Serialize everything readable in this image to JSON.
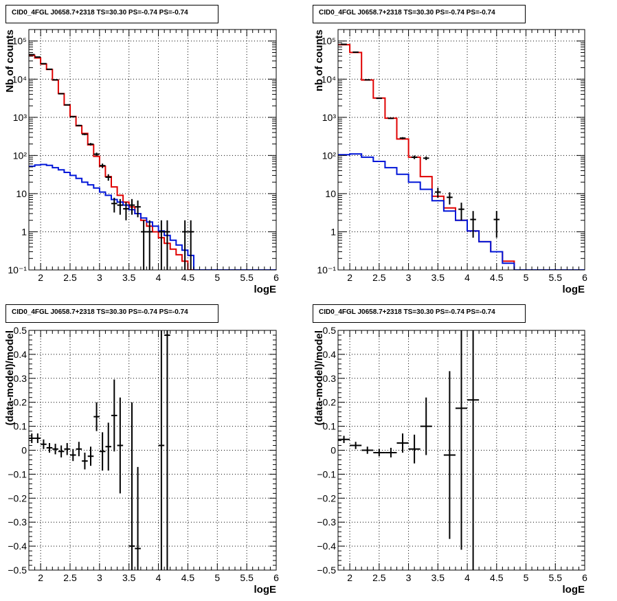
{
  "colors": {
    "data": "#000000",
    "total_model": "#e00000",
    "background_model": "#0016d8",
    "grid": "#000000"
  },
  "chart_data": [
    {
      "type": "histogram",
      "title": "CID0_4FGL J0658.7+2318 TS=30.30 PS=-0.74 PS=-0.74",
      "xlabel": "logE",
      "ylabel": "Nb of counts",
      "xlim": [
        1.8,
        6
      ],
      "ylim": [
        0.1,
        200000
      ],
      "yscale": "log",
      "grid": true,
      "xticks": [
        2,
        2.5,
        3,
        3.5,
        4,
        4.5,
        5,
        5.5,
        6
      ],
      "xtick_labels": [
        "2",
        "2.5",
        "3",
        "3.5",
        "4",
        "4.5",
        "5",
        "5.5",
        "6"
      ],
      "yticks": [
        0.1,
        1,
        10,
        100,
        1000,
        10000,
        100000
      ],
      "ytick_labels": [
        "10⁻¹",
        "1",
        "10",
        "10²",
        "10³",
        "10⁴",
        "10⁵"
      ],
      "bin_edges": [
        1.8,
        1.9,
        2.0,
        2.1,
        2.2,
        2.3,
        2.4,
        2.5,
        2.6,
        2.7,
        2.8,
        2.9,
        3.0,
        3.1,
        3.2,
        3.3,
        3.4,
        3.5,
        3.6,
        3.7,
        3.8,
        3.9,
        4.0,
        4.1,
        4.2,
        4.3,
        4.4,
        4.5,
        4.6,
        4.7,
        4.8,
        4.9,
        5.0,
        5.1,
        5.2,
        5.3,
        5.4,
        5.5,
        5.6,
        5.7,
        5.8,
        5.9,
        6.0
      ],
      "series": [
        {
          "role": "total_model",
          "style": "step",
          "values": [
            42000,
            36000,
            25000,
            18000,
            9500,
            4200,
            2100,
            1050,
            600,
            380,
            190,
            95,
            52,
            28,
            15,
            9,
            6,
            4.5,
            3.0,
            2.0,
            1.4,
            1.0,
            0.7,
            0.5,
            0.35,
            0.25,
            0.17,
            0.1,
            0.1,
            0.1,
            0.1,
            0.1,
            0.1,
            0.1,
            0.1,
            0.1,
            0.1,
            0.1,
            0.1,
            0.1,
            0.1,
            0.1
          ]
        },
        {
          "role": "background_model",
          "style": "step",
          "values": [
            52,
            56,
            58,
            55,
            48,
            42,
            36,
            30,
            25,
            20,
            17,
            14,
            11,
            9,
            7,
            6,
            5,
            3.8,
            3.0,
            2.3,
            1.8,
            1.4,
            1.05,
            0.8,
            0.6,
            0.45,
            0.33,
            0.24,
            0.1,
            0.1,
            0.1,
            0.1,
            0.1,
            0.1,
            0.1,
            0.1,
            0.1,
            0.1,
            0.1,
            0.1,
            0.1,
            0.1
          ]
        },
        {
          "role": "data",
          "style": "errorbar",
          "x": [
            1.85,
            1.95,
            2.05,
            2.15,
            2.25,
            2.35,
            2.45,
            2.55,
            2.65,
            2.75,
            2.85,
            2.95,
            3.05,
            3.15,
            3.25,
            3.35,
            3.45,
            3.55,
            3.65,
            3.75,
            3.85,
            4.05,
            4.15,
            4.45,
            4.55
          ],
          "y": [
            44000,
            38000,
            25500,
            18200,
            9600,
            4150,
            2120,
            1040,
            610,
            360,
            198,
            108,
            54,
            27,
            5.5,
            5,
            4,
            5,
            4.5,
            1,
            1,
            1,
            1,
            1,
            1
          ],
          "yerr_lo": [
            210,
            195,
            160,
            135,
            98,
            64,
            46,
            32,
            25,
            19,
            14,
            10.4,
            7.3,
            5.2,
            2.3,
            2.2,
            2.0,
            2.2,
            2.1,
            0.9,
            0.9,
            0.9,
            0.9,
            0.9,
            0.9
          ],
          "yerr_hi": [
            210,
            195,
            160,
            135,
            98,
            64,
            46,
            32,
            25,
            19,
            14,
            10.4,
            7.3,
            5.2,
            2.3,
            2.2,
            2.0,
            2.2,
            2.1,
            1.0,
            1.0,
            1.0,
            1.0,
            1.0,
            1.0
          ]
        }
      ]
    },
    {
      "type": "histogram",
      "title": "CID0_4FGL J0658.7+2318 TS=30.30 PS=-0.74 PS=-0.74",
      "xlabel": "logE",
      "ylabel": "nb of counts",
      "xlim": [
        1.8,
        6
      ],
      "ylim": [
        0.1,
        200000
      ],
      "yscale": "log",
      "grid": true,
      "xticks": [
        2,
        2.5,
        3,
        3.5,
        4,
        4.5,
        5,
        5.5,
        6
      ],
      "xtick_labels": [
        "2",
        "2.5",
        "3",
        "3.5",
        "4",
        "4.5",
        "5",
        "5.5",
        "6"
      ],
      "yticks": [
        0.1,
        1,
        10,
        100,
        1000,
        10000,
        100000
      ],
      "ytick_labels": [
        "10⁻¹",
        "1",
        "10",
        "10²",
        "10³",
        "10⁴",
        "10⁵"
      ],
      "bin_edges": [
        1.8,
        2.0,
        2.2,
        2.4,
        2.6,
        2.8,
        3.0,
        3.2,
        3.4,
        3.6,
        3.8,
        4.0,
        4.2,
        4.4,
        4.6,
        4.8,
        5.0,
        5.2,
        5.4,
        5.6,
        5.8,
        6.0
      ],
      "series": [
        {
          "role": "total_model",
          "style": "step",
          "values": [
            80000,
            50000,
            9500,
            3200,
            950,
            270,
            90,
            28,
            8.5,
            4.2,
            2.0,
            1.05,
            0.55,
            0.3,
            0.17,
            0.1,
            0.1,
            0.1,
            0.1,
            0.1,
            0.1
          ]
        },
        {
          "role": "background_model",
          "style": "step",
          "values": [
            105,
            110,
            90,
            70,
            48,
            32,
            20,
            13,
            6.5,
            3.5,
            2.0,
            1.05,
            0.55,
            0.3,
            0.15,
            0.1,
            0.1,
            0.1,
            0.1,
            0.1,
            0.1
          ]
        },
        {
          "role": "data",
          "style": "errorbar",
          "x": [
            1.9,
            2.1,
            2.3,
            2.5,
            2.7,
            2.9,
            3.1,
            3.3,
            3.5,
            3.7,
            3.9,
            4.1,
            4.5
          ],
          "y": [
            82000,
            51000,
            9600,
            3150,
            940,
            285,
            90,
            85,
            11,
            8,
            3.9,
            2.1,
            2.1
          ],
          "yerr_lo": [
            286,
            226,
            98,
            56,
            31,
            17,
            9.5,
            9.2,
            3.3,
            2.8,
            1.9,
            1.4,
            1.4
          ],
          "yerr_hi": [
            286,
            226,
            98,
            56,
            31,
            17,
            9.5,
            9.2,
            3.3,
            2.8,
            1.9,
            1.4,
            1.4
          ]
        }
      ]
    },
    {
      "type": "scatter",
      "title": "CID0_4FGL J0658.7+2318 TS=30.30 PS=-0.74 PS=-0.74",
      "xlabel": "logE",
      "ylabel": "(data-model)/model",
      "xlim": [
        1.8,
        6
      ],
      "ylim": [
        -0.5,
        0.5
      ],
      "grid": true,
      "xticks": [
        2,
        2.5,
        3,
        3.5,
        4,
        4.5,
        5,
        5.5,
        6
      ],
      "xtick_labels": [
        "2",
        "2.5",
        "3",
        "3.5",
        "4",
        "4.5",
        "5",
        "5.5",
        "6"
      ],
      "yticks": [
        -0.5,
        -0.4,
        -0.3,
        -0.2,
        -0.1,
        0,
        0.1,
        0.2,
        0.3,
        0.4,
        0.5
      ],
      "ytick_labels": [
        "−0.5",
        "−0.4",
        "−0.3",
        "−0.2",
        "−0.1",
        "0",
        "0.1",
        "0.2",
        "0.3",
        "0.4",
        "0.5"
      ],
      "series": [
        {
          "role": "data",
          "style": "errorbar",
          "xerr": 0.05,
          "x": [
            1.85,
            1.95,
            2.05,
            2.15,
            2.25,
            2.35,
            2.45,
            2.55,
            2.65,
            2.75,
            2.85,
            2.95,
            3.05,
            3.15,
            3.25,
            3.35,
            3.55,
            3.65,
            4.05,
            4.15
          ],
          "y": [
            0.05,
            0.05,
            0.025,
            0.01,
            0.005,
            -0.005,
            0.005,
            -0.02,
            0.005,
            -0.045,
            -0.025,
            0.14,
            -0.005,
            0.015,
            0.145,
            0.02,
            -0.4,
            -0.41,
            0.02,
            0.48
          ],
          "yerr": [
            0.02,
            0.02,
            0.02,
            0.02,
            0.022,
            0.025,
            0.025,
            0.025,
            0.03,
            0.035,
            0.04,
            0.06,
            0.08,
            0.1,
            0.15,
            0.2,
            0.6,
            0.34,
            1.0,
            1.0
          ]
        }
      ]
    },
    {
      "type": "scatter",
      "title": "CID0_4FGL J0658.7+2318 TS=30.30 PS=-0.74 PS=-0.74",
      "xlabel": "logE",
      "ylabel": "(data-model)/model",
      "xlim": [
        1.8,
        6
      ],
      "ylim": [
        -0.5,
        0.5
      ],
      "grid": true,
      "xticks": [
        2,
        2.5,
        3,
        3.5,
        4,
        4.5,
        5,
        5.5,
        6
      ],
      "xtick_labels": [
        "2",
        "2.5",
        "3",
        "3.5",
        "4",
        "4.5",
        "5",
        "5.5",
        "6"
      ],
      "yticks": [
        -0.5,
        -0.4,
        -0.3,
        -0.2,
        -0.1,
        0,
        0.1,
        0.2,
        0.3,
        0.4,
        0.5
      ],
      "ytick_labels": [
        "−0.5",
        "−0.4",
        "−0.3",
        "−0.2",
        "−0.1",
        "0",
        "0.1",
        "0.2",
        "0.3",
        "0.4",
        "0.5"
      ],
      "series": [
        {
          "role": "data",
          "style": "errorbar",
          "xerr": 0.1,
          "x": [
            1.9,
            2.1,
            2.3,
            2.5,
            2.7,
            2.9,
            3.1,
            3.3,
            3.7,
            3.9,
            4.1
          ],
          "y": [
            0.045,
            0.02,
            0.0,
            -0.01,
            -0.01,
            0.03,
            0.005,
            0.1,
            -0.02,
            0.175,
            0.21
          ],
          "yerr": [
            0.015,
            0.015,
            0.015,
            0.015,
            0.02,
            0.04,
            0.06,
            0.12,
            0.35,
            0.59,
            0.8
          ]
        }
      ]
    }
  ]
}
